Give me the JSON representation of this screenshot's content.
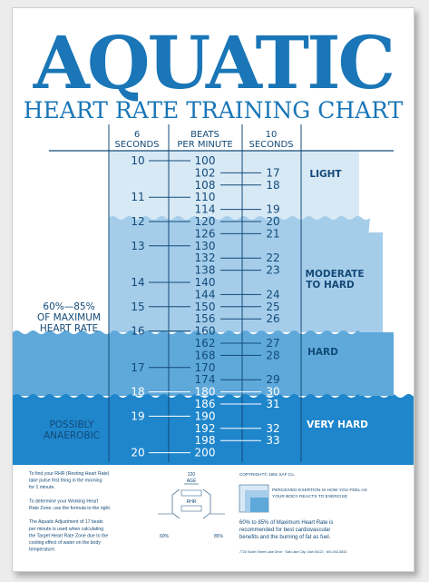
{
  "colors": {
    "brand": "#1a76b7",
    "zone_light": "#d8e9f6",
    "zone_moderate": "#a5cdea",
    "zone_hard": "#5ea9da",
    "zone_very_hard": "#1f86cc",
    "text_dark": "#134a78",
    "paper": "#ffffff"
  },
  "title": {
    "main": "AQUATIC",
    "subtitle": "HEART RATE TRAINING CHART"
  },
  "columns": {
    "six": [
      "6",
      "SECONDS"
    ],
    "bpm": [
      "BEATS",
      "PER MINUTE"
    ],
    "ten": [
      "10",
      "SECONDS"
    ]
  },
  "zones": {
    "light": [
      "LIGHT"
    ],
    "moderate": [
      "MODERATE",
      "TO HARD"
    ],
    "hard": [
      "HARD"
    ],
    "very_hard": [
      "VERY HARD"
    ]
  },
  "side_labels": {
    "max_hr": [
      "60%—85%",
      "OF MAXIMUM",
      "HEART RATE"
    ],
    "anaerobic": [
      "POSSIBLY",
      "ANAEROBIC"
    ]
  },
  "table": {
    "bpm": [
      "100",
      "102",
      "108",
      "110",
      "114",
      "120",
      "126",
      "130",
      "132",
      "138",
      "140",
      "144",
      "150",
      "156",
      "160",
      "162",
      "168",
      "170",
      "174",
      "180",
      "186",
      "190",
      "192",
      "198",
      "200"
    ],
    "six": [
      {
        "row": 0,
        "v": "10"
      },
      {
        "row": 3,
        "v": "11"
      },
      {
        "row": 5,
        "v": "12"
      },
      {
        "row": 7,
        "v": "13"
      },
      {
        "row": 10,
        "v": "14"
      },
      {
        "row": 12,
        "v": "15"
      },
      {
        "row": 14,
        "v": "16"
      },
      {
        "row": 17,
        "v": "17"
      },
      {
        "row": 19,
        "v": "18"
      },
      {
        "row": 21,
        "v": "19"
      },
      {
        "row": 24,
        "v": "20"
      }
    ],
    "ten": [
      {
        "row": 1,
        "v": "17"
      },
      {
        "row": 2,
        "v": "18"
      },
      {
        "row": 4,
        "v": "19"
      },
      {
        "row": 5,
        "v": "20"
      },
      {
        "row": 6,
        "v": "21"
      },
      {
        "row": 8,
        "v": "22"
      },
      {
        "row": 9,
        "v": "23"
      },
      {
        "row": 11,
        "v": "24"
      },
      {
        "row": 12,
        "v": "25"
      },
      {
        "row": 13,
        "v": "26"
      },
      {
        "row": 15,
        "v": "27"
      },
      {
        "row": 16,
        "v": "28"
      },
      {
        "row": 18,
        "v": "29"
      },
      {
        "row": 19,
        "v": "30"
      },
      {
        "row": 20,
        "v": "31"
      },
      {
        "row": 22,
        "v": "32"
      },
      {
        "row": 23,
        "v": "33"
      }
    ]
  },
  "footer": {
    "left": [
      "To find your RHR (Resting Heart Rate)",
      "take pulse first thing in the morning",
      "for 1 minute.",
      "",
      "To determine your Working Heart",
      "Rate Zone, use the formula to the right.",
      "",
      "The Aquatic Adjustment of 17 beats",
      "per minute is used when calculating",
      "the Target Heart Rate Zone due to the",
      "cooling effect of water on the body",
      "temperature."
    ],
    "formula": {
      "top": "220",
      "age": "AGE",
      "rhr": "RHR",
      "pct_low": "60%",
      "pct_high": "85%"
    },
    "copyright": "COPYRIGHT© 1991 SAF Co.",
    "note_upper": [
      "PERCEIVED EXERTION IS HOW YOU FEEL AS",
      "YOUR BODY REACTS TO EXERCISE"
    ],
    "note_lower": [
      "60% to 85% of Maximum Heart Rate is",
      "recommended for best cardiovascular",
      "benefits and the burning of fat as fuel."
    ],
    "address": "7725 South Street Lake Drive · Salt Lake City, Utah 84121 · 801-942-6833"
  }
}
